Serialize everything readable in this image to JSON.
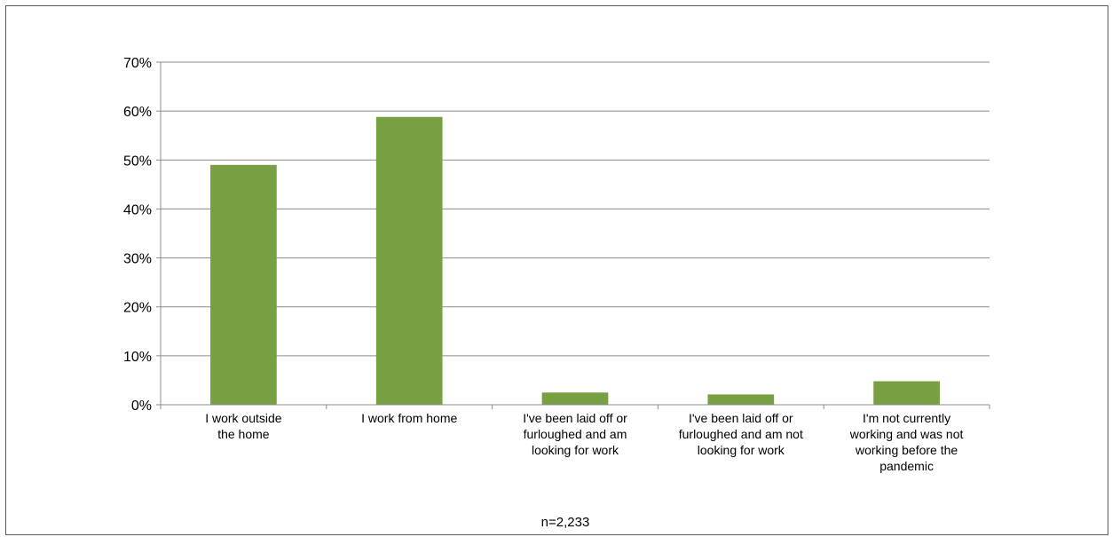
{
  "chart_data": {
    "type": "bar",
    "categories": [
      "I work outside the home",
      "I work from home",
      "I've been laid off or furloughed and am looking for work",
      "I've been laid off or furloughed and am not looking for work",
      "I'm not currently working and was not working before the pandemic"
    ],
    "category_label_lines": [
      [
        "I work outside",
        "the home"
      ],
      [
        "I work from home"
      ],
      [
        "I've been laid off or",
        "furloughed and am",
        "looking for work"
      ],
      [
        "I've been laid off or",
        "furloughed and am not",
        "looking for work"
      ],
      [
        "I'm not currently",
        "working and was not",
        "working before the",
        "pandemic"
      ]
    ],
    "values": [
      49,
      58.8,
      2.5,
      2.1,
      4.8
    ],
    "ylim": [
      0,
      70
    ],
    "yticks": [
      0,
      10,
      20,
      30,
      40,
      50,
      60,
      70
    ],
    "ytick_labels": [
      "0%",
      "10%",
      "20%",
      "30%",
      "40%",
      "50%",
      "60%",
      "70%"
    ],
    "bar_color": "#77a043",
    "grid": true,
    "legend": "none",
    "note": "n=2,233",
    "title": "",
    "xlabel": "",
    "ylabel": ""
  }
}
